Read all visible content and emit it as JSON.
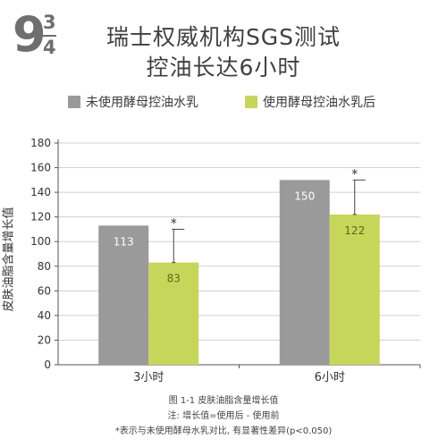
{
  "badge": {
    "big": "9",
    "frac_top": "3",
    "frac_bot": "4"
  },
  "title": {
    "line1": "瑞士权威机构SGS测试",
    "line2": "控油长达6小时"
  },
  "colors": {
    "before": "#9a9a9a",
    "after": "#c6d65a",
    "axis": "#555555",
    "grid": "#d0d0d0"
  },
  "chart_data": {
    "type": "bar",
    "categories": [
      "3小时",
      "6小时"
    ],
    "series": [
      {
        "name": "未使用酵母控油水乳",
        "values": [
          113,
          150
        ],
        "labels": [
          "113",
          "150"
        ],
        "error": [
          0,
          0
        ],
        "significance": [
          "",
          ""
        ]
      },
      {
        "name": "使用酵母控油水乳后",
        "values": [
          83,
          122
        ],
        "labels": [
          "83",
          "122"
        ],
        "error": [
          27,
          28
        ],
        "significance": [
          "*",
          "*"
        ]
      }
    ],
    "xlabel": "",
    "ylabel": "皮肤油脂含量增长值",
    "ylim": [
      0,
      180
    ],
    "yticks": [
      "0",
      "20",
      "40",
      "60",
      "80",
      "100",
      "120",
      "140",
      "160",
      "180"
    ],
    "grid": true,
    "legend_position": "top"
  },
  "captions": {
    "fig": "图 1-1 皮肤油脂含量增长值",
    "note": "注: 增长值=使用后 - 使用前",
    "sig": "*表示与未使用酵母水乳对比, 有显著性差异(p<0.050)"
  }
}
